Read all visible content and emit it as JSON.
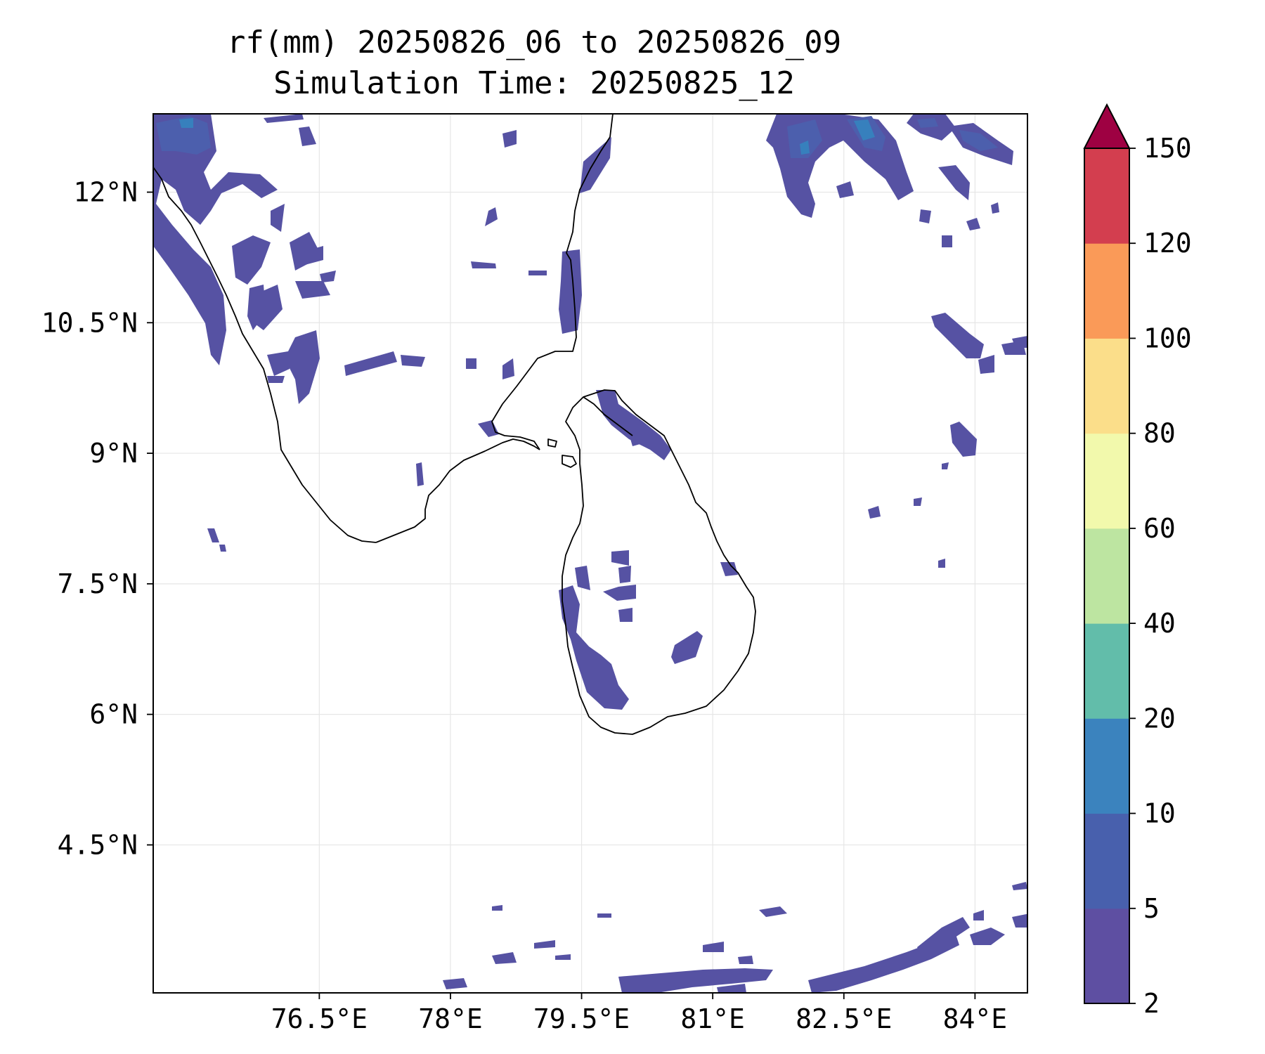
{
  "title": {
    "line1": "rf(mm) 20250826_06 to 20250826_09",
    "line2": "Simulation Time: 20250825_12"
  },
  "map": {
    "lon_range": [
      74.6,
      84.6
    ],
    "lat_range": [
      2.8,
      12.9
    ],
    "lon_ticks": [
      76.5,
      78.0,
      79.5,
      81.0,
      82.5,
      84.0
    ],
    "lon_tick_labels": [
      "76.5°E",
      "78°E",
      "79.5°E",
      "81°E",
      "82.5°E",
      "84°E"
    ],
    "lat_ticks": [
      12.0,
      10.5,
      9.0,
      7.5,
      6.0,
      4.5
    ],
    "lat_tick_labels": [
      "12°N",
      "10.5°N",
      "9°N",
      "7.5°N",
      "6°N",
      "4.5°N"
    ],
    "gridlines": true,
    "coastline_color": "#000000"
  },
  "colorbar": {
    "levels": [
      "2",
      "5",
      "10",
      "20",
      "40",
      "60",
      "80",
      "100",
      "120",
      "150"
    ],
    "colors": [
      "#5e4fa2",
      "#4860ad",
      "#3b83be",
      "#62bdaa",
      "#bde5a1",
      "#f2f9ac",
      "#fbde8a",
      "#fa9a58",
      "#d33e4f"
    ],
    "extend_color": "#9e0142",
    "extend": "max",
    "placement": "right"
  },
  "rain_color_2_5": "#5652a3",
  "rain_color_5_10": "#4c5fad",
  "rain_color_10_20": "#3780bd"
}
